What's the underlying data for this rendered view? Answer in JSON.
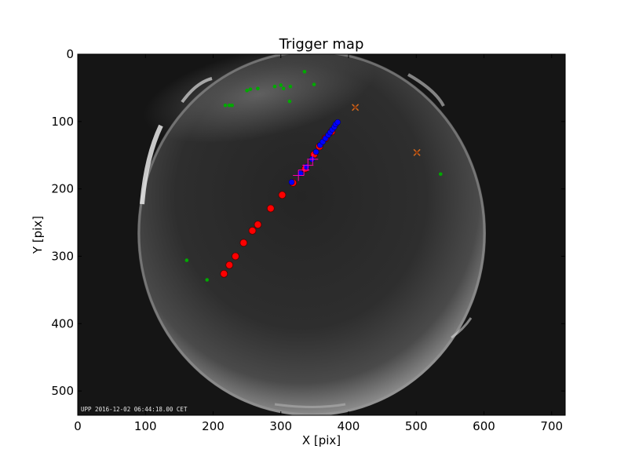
{
  "chart_data": {
    "type": "scatter",
    "title": "Trigger map",
    "xlabel": "X [pix]",
    "ylabel": "Y [pix]",
    "xlim": [
      0,
      720
    ],
    "ylim": [
      536,
      0
    ],
    "xticks": [
      0,
      100,
      200,
      300,
      400,
      500,
      600,
      700
    ],
    "yticks": [
      0,
      100,
      200,
      300,
      400,
      500
    ],
    "grid": false,
    "image_stamp": "UPP 2016-12-02 06:44:18.00 CET",
    "colors": {
      "sky_image": "#1c1c1c",
      "frame": "#000000",
      "red": "#ff0000",
      "blue": "#0000ff",
      "green": "#00aa00",
      "orange": "#d2691e",
      "magenta": "#ff00aa"
    },
    "series": [
      {
        "marker": "circle-red",
        "points": [
          [
            216,
            326
          ],
          [
            224,
            313
          ],
          [
            233,
            300
          ],
          [
            245,
            280
          ],
          [
            258,
            262
          ],
          [
            266,
            253
          ],
          [
            285,
            229
          ],
          [
            302,
            209
          ],
          [
            318,
            191
          ],
          [
            336,
            170
          ],
          [
            349,
            149
          ],
          [
            357,
            137
          ],
          [
            366,
            125
          ],
          [
            375,
            115
          ]
        ]
      },
      {
        "marker": "circle-blue",
        "points": [
          [
            316,
            190
          ],
          [
            329,
            177
          ],
          [
            338,
            167
          ],
          [
            346,
            156
          ],
          [
            352,
            145
          ],
          [
            358,
            135
          ],
          [
            362,
            130
          ],
          [
            366,
            125
          ],
          [
            370,
            120
          ],
          [
            373,
            116
          ],
          [
            376,
            112
          ],
          [
            379,
            108
          ],
          [
            381,
            104
          ],
          [
            384,
            101
          ]
        ]
      },
      {
        "marker": "circle-green-small",
        "points": [
          [
            335,
            26
          ],
          [
            349,
            45
          ],
          [
            314,
            48
          ],
          [
            300,
            46
          ],
          [
            304,
            51
          ],
          [
            291,
            48
          ],
          [
            266,
            51
          ],
          [
            255,
            52
          ],
          [
            250,
            54
          ],
          [
            218,
            76
          ],
          [
            224,
            76
          ],
          [
            228,
            76
          ],
          [
            313,
            70
          ],
          [
            536,
            178
          ],
          [
            161,
            306
          ],
          [
            191,
            335
          ]
        ]
      },
      {
        "marker": "x-orange",
        "points": [
          [
            410,
            79
          ],
          [
            501,
            146
          ]
        ]
      },
      {
        "marker": "x-magenta",
        "points": [
          [
            326,
            180
          ],
          [
            334,
            172
          ],
          [
            340,
            165
          ],
          [
            347,
            156
          ]
        ]
      }
    ]
  }
}
